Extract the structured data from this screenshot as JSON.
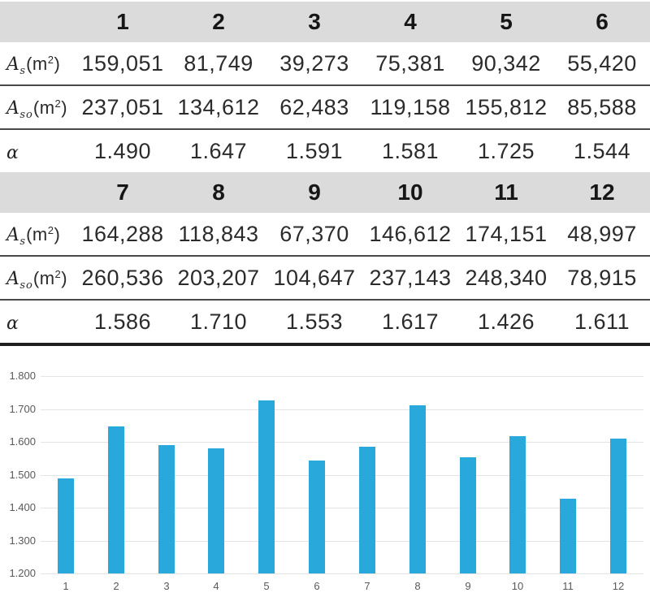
{
  "table": {
    "sections": [
      {
        "columns": [
          "1",
          "2",
          "3",
          "4",
          "5",
          "6"
        ],
        "rows": [
          {
            "label": {
              "var": "A",
              "sub": "s",
              "pre": "(m",
              "sup": "2",
              "post": ")"
            },
            "values": [
              "159,051",
              "81,749",
              "39,273",
              "75,381",
              "90,342",
              "55,420"
            ]
          },
          {
            "label": {
              "var": "A",
              "sub": "so",
              "pre": "(m",
              "sup": "2",
              "post": ")"
            },
            "values": [
              "237,051",
              "134,612",
              "62,483",
              "119,158",
              "155,812",
              "85,588"
            ]
          },
          {
            "label": {
              "var": "α",
              "sub": "",
              "pre": "",
              "sup": "",
              "post": ""
            },
            "values": [
              "1.490",
              "1.647",
              "1.591",
              "1.581",
              "1.725",
              "1.544"
            ]
          }
        ]
      },
      {
        "columns": [
          "7",
          "8",
          "9",
          "10",
          "11",
          "12"
        ],
        "rows": [
          {
            "label": {
              "var": "A",
              "sub": "s",
              "pre": "(m",
              "sup": "2",
              "post": ")"
            },
            "values": [
              "164,288",
              "118,843",
              "67,370",
              "146,612",
              "174,151",
              "48,997"
            ]
          },
          {
            "label": {
              "var": "A",
              "sub": "so",
              "pre": "(m",
              "sup": "2",
              "post": ")"
            },
            "values": [
              "260,536",
              "203,207",
              "104,647",
              "237,143",
              "248,340",
              "78,915"
            ]
          },
          {
            "label": {
              "var": "α",
              "sub": "",
              "pre": "",
              "sup": "",
              "post": ""
            },
            "values": [
              "1.586",
              "1.710",
              "1.553",
              "1.617",
              "1.426",
              "1.611"
            ]
          }
        ]
      }
    ]
  },
  "chart_data": {
    "type": "bar",
    "title": "",
    "xlabel": "",
    "ylabel": "",
    "categories": [
      "1",
      "2",
      "3",
      "4",
      "5",
      "6",
      "7",
      "8",
      "9",
      "10",
      "11",
      "12"
    ],
    "values": [
      1.49,
      1.647,
      1.591,
      1.581,
      1.725,
      1.544,
      1.586,
      1.71,
      1.553,
      1.617,
      1.426,
      1.611
    ],
    "series_name": "α",
    "ylim": [
      1.2,
      1.8
    ],
    "ytick_labels": [
      "1.200",
      "1.300",
      "1.400",
      "1.500",
      "1.600",
      "1.700",
      "1.800"
    ],
    "grid": "horizontal",
    "legend": "none",
    "bar_color": "#29A8DB",
    "gridline_color": "#E4E4E4",
    "axis_label_color": "#595959"
  },
  "colors": {
    "header_band": "#DBDBDB",
    "row_rule": "#4a4a4a",
    "table_bottom_rule": "#1f1f1f",
    "text": "#2b2b2b"
  }
}
